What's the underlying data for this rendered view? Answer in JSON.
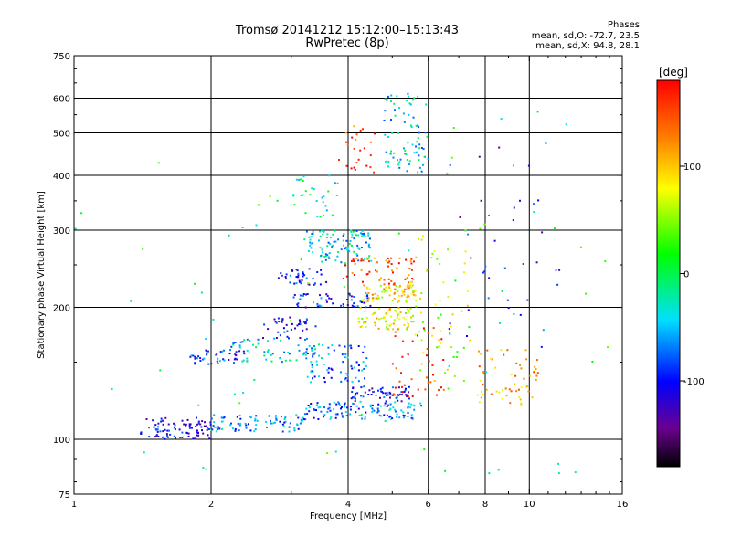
{
  "header": {
    "title_line1": "Tromsø 20141212 15:12:00–15:13:43",
    "title_line2": "RwPretec (8p)"
  },
  "phase_info": {
    "heading": "Phases",
    "line1": "mean, sd,O: -72.7, 23.5",
    "line2": "mean, sd,X:  94.8, 28.1"
  },
  "colorbar": {
    "unit_label": "[deg]",
    "tick_labels": [
      "100",
      "0",
      "-100"
    ],
    "tick_values": [
      100,
      0,
      -100
    ],
    "range": [
      -180,
      180
    ],
    "colormap": "rainbow (black→purple→blue→cyan→green→yellow→orange→red)"
  },
  "chart_data": {
    "type": "scatter",
    "title": "Tromsø 20141212 15:12:00–15:13:43",
    "subtitle": "RwPretec (8p)",
    "xlabel": "Frequency [MHz]",
    "ylabel": "Stationary phase Virtual Height [km]",
    "x_scale": "log",
    "y_scale": "log",
    "xlim": [
      1,
      16
    ],
    "ylim": [
      75,
      750
    ],
    "x_tick_labels": [
      "1",
      "2",
      "4",
      "6",
      "8",
      "10",
      "16"
    ],
    "x_tick_values": [
      1,
      2,
      4,
      6,
      8,
      10,
      16
    ],
    "y_tick_labels": [
      "750",
      "600",
      "500",
      "400",
      "300",
      "200",
      "100",
      "75"
    ],
    "y_tick_values": [
      750,
      600,
      500,
      400,
      300,
      200,
      100,
      75
    ],
    "grid_x": [
      2,
      4,
      6,
      8,
      10
    ],
    "grid_y": [
      100,
      200,
      300,
      400,
      500,
      600
    ],
    "color_encoding": "phase [deg]",
    "clusters": [
      {
        "x_range": [
          1.4,
          2.0
        ],
        "y_range": [
          100,
          112
        ],
        "phase": -110,
        "count": 90
      },
      {
        "x_range": [
          2.0,
          3.2
        ],
        "y_range": [
          104,
          114
        ],
        "phase": -60,
        "count": 80
      },
      {
        "x_range": [
          3.2,
          5.8
        ],
        "y_range": [
          111,
          122
        ],
        "phase": -70,
        "count": 120
      },
      {
        "x_range": [
          4.0,
          5.5
        ],
        "y_range": [
          122,
          132
        ],
        "phase": -100,
        "count": 60
      },
      {
        "x_range": [
          1.8,
          2.4
        ],
        "y_range": [
          148,
          160
        ],
        "phase": -90,
        "count": 45
      },
      {
        "x_range": [
          2.2,
          3.5
        ],
        "y_range": [
          150,
          170
        ],
        "phase": -40,
        "count": 60
      },
      {
        "x_range": [
          2.6,
          3.4
        ],
        "y_range": [
          170,
          190
        ],
        "phase": -110,
        "count": 40
      },
      {
        "x_range": [
          3.2,
          4.4
        ],
        "y_range": [
          135,
          165
        ],
        "phase": -70,
        "count": 70
      },
      {
        "x_range": [
          4.2,
          5.6
        ],
        "y_range": [
          178,
          200
        ],
        "phase": 80,
        "count": 70
      },
      {
        "x_range": [
          4.3,
          5.8
        ],
        "y_range": [
          205,
          225
        ],
        "phase": 90,
        "count": 80
      },
      {
        "x_range": [
          3.0,
          4.5
        ],
        "y_range": [
          200,
          215
        ],
        "phase": -100,
        "count": 50
      },
      {
        "x_range": [
          3.2,
          4.5
        ],
        "y_range": [
          250,
          300
        ],
        "phase": -40,
        "count": 110
      },
      {
        "x_range": [
          3.9,
          5.6
        ],
        "y_range": [
          225,
          260
        ],
        "phase": 150,
        "count": 60
      },
      {
        "x_range": [
          2.8,
          3.6
        ],
        "y_range": [
          225,
          245
        ],
        "phase": -100,
        "count": 40
      },
      {
        "x_range": [
          4.8,
          6.0
        ],
        "y_range": [
          400,
          620
        ],
        "phase": -40,
        "count": 80
      },
      {
        "x_range": [
          5.5,
          7.5
        ],
        "y_range": [
          130,
          300
        ],
        "phase": 60,
        "count": 60
      },
      {
        "x_range": [
          7.5,
          10.5
        ],
        "y_range": [
          120,
          160
        ],
        "phase": 110,
        "count": 60
      },
      {
        "x_range": [
          3.0,
          3.8
        ],
        "y_range": [
          320,
          400
        ],
        "phase": -20,
        "count": 30
      },
      {
        "x_range": [
          3.8,
          4.6
        ],
        "y_range": [
          400,
          520
        ],
        "phase": 150,
        "count": 25
      },
      {
        "x_range": [
          6.5,
          12.0
        ],
        "y_range": [
          160,
          500
        ],
        "phase": -100,
        "count": 40
      },
      {
        "x_range": [
          5.0,
          6.5
        ],
        "y_range": [
          125,
          180
        ],
        "phase": 170,
        "count": 40
      },
      {
        "x_range": [
          1.0,
          15.0
        ],
        "y_range": [
          80,
          620
        ],
        "phase": 0,
        "count": 70
      }
    ]
  }
}
